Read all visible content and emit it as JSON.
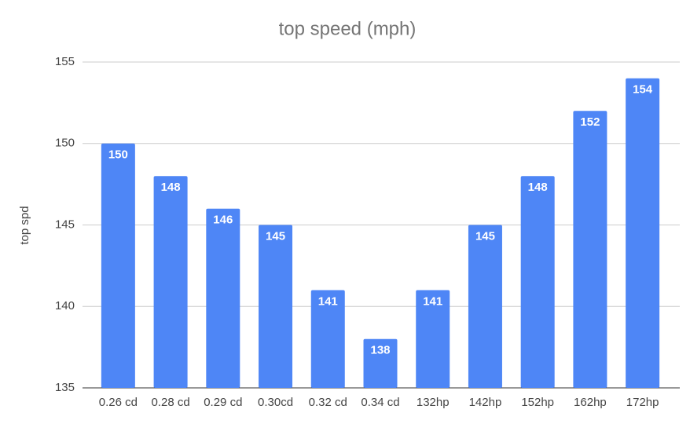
{
  "chart_data": {
    "type": "bar",
    "title": "top speed (mph)",
    "y_label": "top spd",
    "categories": [
      "0.26 cd",
      "0.28 cd",
      "0.29 cd",
      "0.30cd",
      "0.32 cd",
      "0.34 cd",
      "132hp",
      "142hp",
      "152hp",
      "162hp",
      "172hp"
    ],
    "values": [
      150,
      148,
      146,
      145,
      141,
      138,
      141,
      145,
      148,
      152,
      154
    ],
    "color": "#4e86f6",
    "ylim": [
      135,
      155
    ],
    "yticks": [
      135,
      140,
      145,
      150,
      155
    ],
    "grid": true
  }
}
